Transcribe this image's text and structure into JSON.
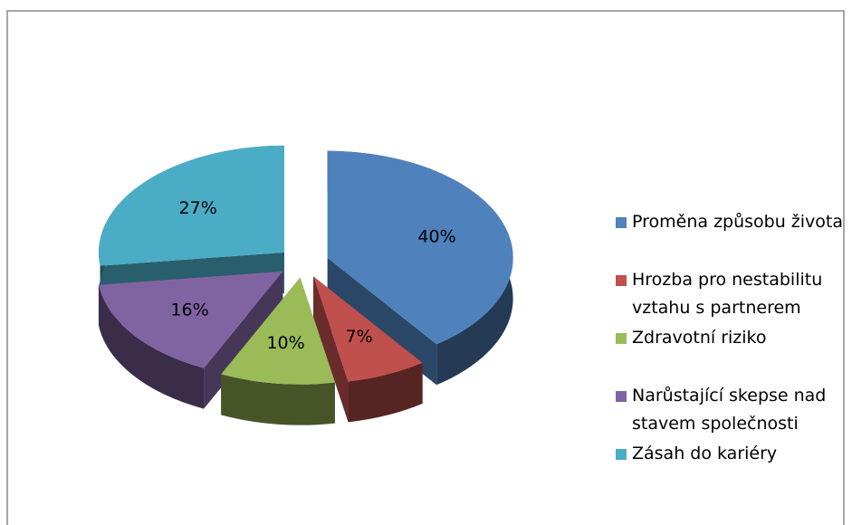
{
  "chart_data": {
    "type": "pie",
    "categories": [
      "Proměna způsobu života",
      "Hrozba pro nestabilitu vztahu s partnerem",
      "Zdravotní riziko",
      "Narůstající skepse nad stavem společnosti",
      "Zásah do kariéry"
    ],
    "values": [
      40,
      7,
      10,
      16,
      27
    ],
    "value_labels": [
      "40%",
      "7%",
      "10%",
      "16%",
      "27%"
    ],
    "colors": [
      "#4f81bd",
      "#c0504d",
      "#9bbb59",
      "#8064a2",
      "#4bacc6"
    ],
    "legend": "right"
  }
}
